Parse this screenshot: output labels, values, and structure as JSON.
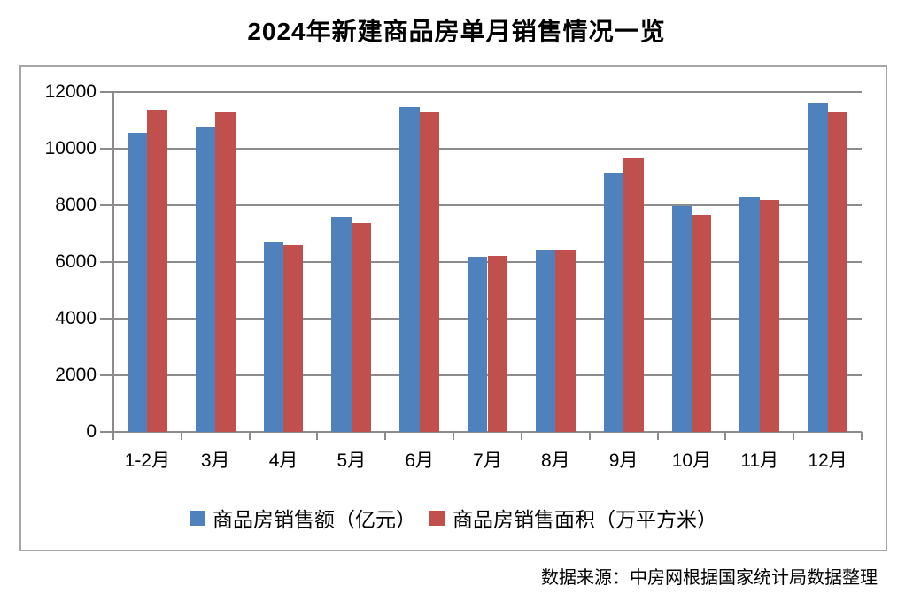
{
  "title": "2024年新建商品房单月销售情况一览",
  "source": "数据来源：中房网根据国家统计局数据整理",
  "colors": {
    "sales_series": "#4F81BD",
    "area_series": "#C0504D",
    "gridline": "#8C8C8C",
    "box_border": "#A6A6A6",
    "text": "#000000",
    "background": "#FFFFFF"
  },
  "chart_data": {
    "type": "bar",
    "title": "2024年新建商品房单月销售情况一览",
    "categories": [
      "1-2月",
      "3月",
      "4月",
      "5月",
      "6月",
      "7月",
      "8月",
      "9月",
      "10月",
      "11月",
      "12月"
    ],
    "series": [
      {
        "name": "商品房销售额（亿元）",
        "color": "#4F81BD",
        "values": [
          10566,
          10789,
          6712,
          7598,
          11468,
          6197,
          6393,
          9157,
          7975,
          8270,
          11625
        ]
      },
      {
        "name": "商品房销售面积（万平方米）",
        "color": "#C0504D",
        "values": [
          11369,
          11299,
          6584,
          7390,
          11274,
          6233,
          6453,
          9682,
          7646,
          8188,
          11267
        ]
      }
    ],
    "xlabel": "",
    "ylabel": "",
    "ylim": [
      0,
      12000
    ],
    "yticks": [
      0,
      2000,
      4000,
      6000,
      8000,
      10000,
      12000
    ],
    "grid": true,
    "legend_position": "bottom",
    "source": "数据来源：中房网根据国家统计局数据整理"
  }
}
